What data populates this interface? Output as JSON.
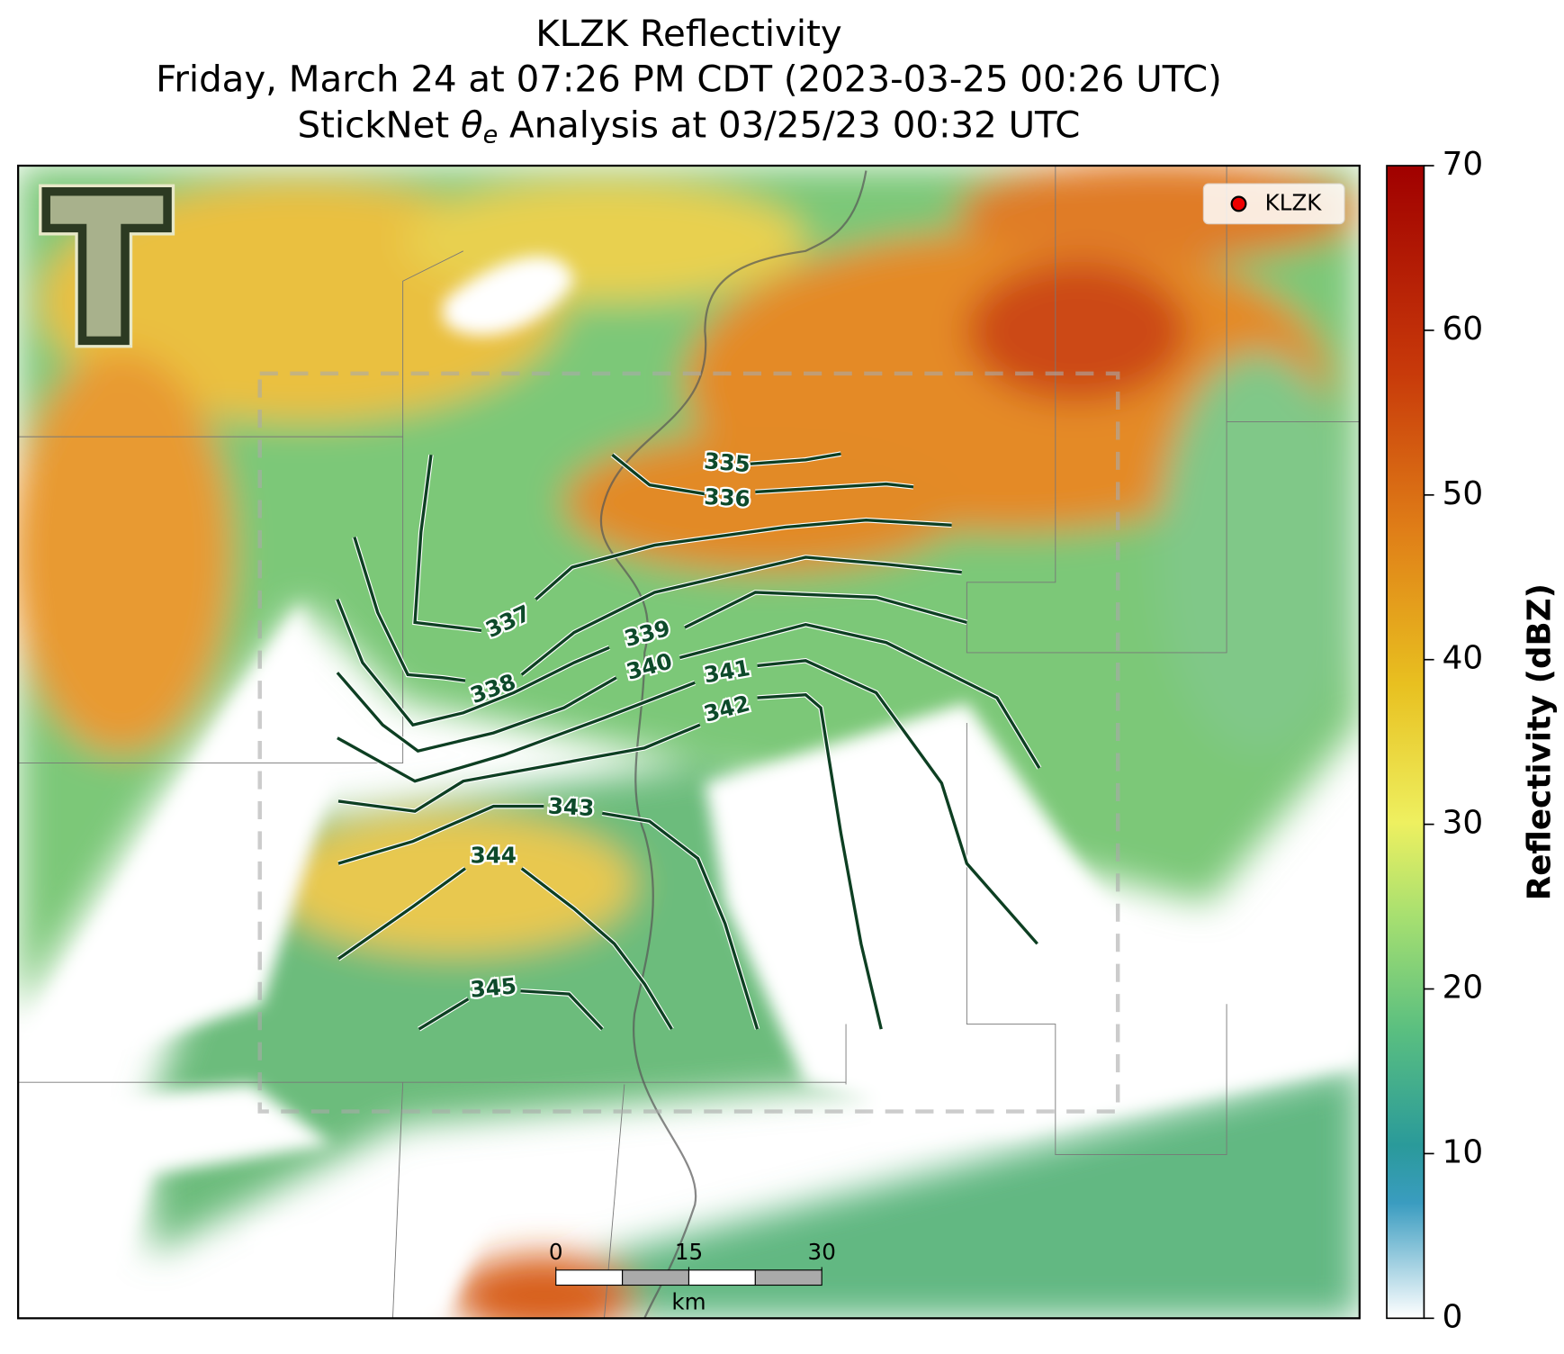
{
  "title": {
    "line1": "KLZK Reflectivity",
    "line2": "Friday, March 24 at 07:26 PM CDT (2023-03-25 00:26 UTC)",
    "line3": {
      "before": "StickNet ",
      "symbol": "θ",
      "subscript": "e",
      "after": " Analysis at 03/25/23 00:32 UTC"
    }
  },
  "legend": {
    "label": "KLZK"
  },
  "colorbar": {
    "label": "Reflectivity (dBZ)",
    "lim": [
      0,
      70
    ],
    "ticks": [
      0,
      10,
      20,
      30,
      40,
      50,
      60,
      70
    ]
  },
  "contours": {
    "levels": [
      335,
      336,
      337,
      338,
      339,
      340,
      341,
      342,
      343,
      344,
      345
    ]
  },
  "scale_bar": {
    "ticks": [
      0,
      15,
      30
    ],
    "unit": "km"
  }
}
